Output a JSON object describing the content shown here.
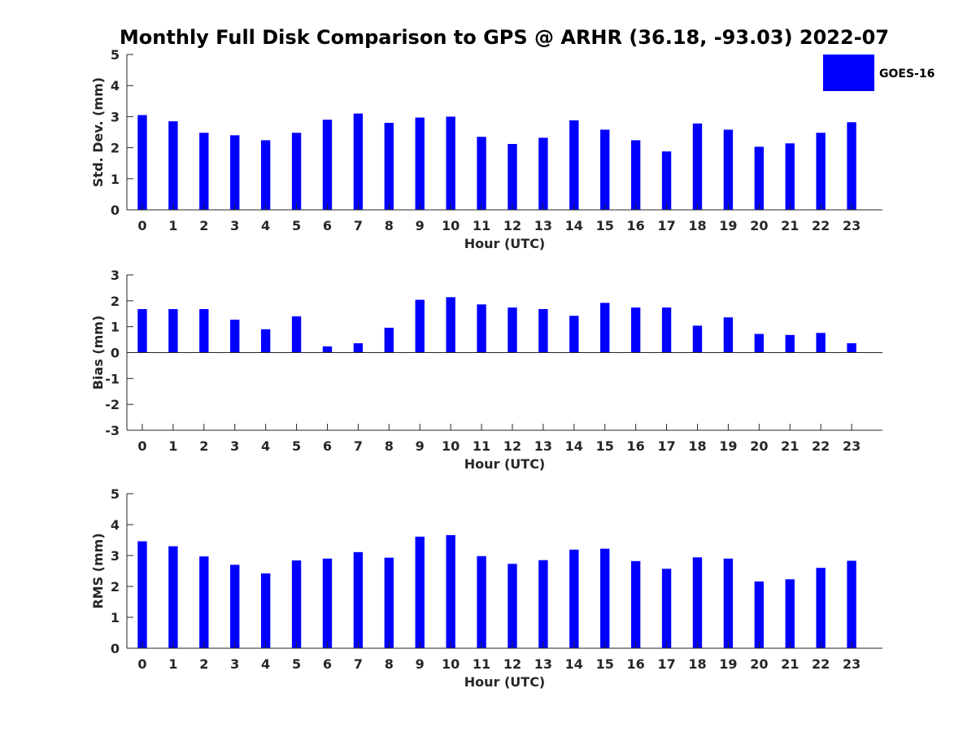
{
  "title": "Monthly Full Disk Comparison to GPS @ ARHR (36.18, -93.03) 2022-07",
  "colors": {
    "bar": "#0000ff",
    "axis": "#262626"
  },
  "legend": {
    "label": "GOES-16",
    "placement": "top-right"
  },
  "chart_data": [
    {
      "type": "bar",
      "xlabel": "Hour (UTC)",
      "ylabel": "Std. Dev. (mm)",
      "ylim": [
        0,
        5
      ],
      "yticks": [
        0,
        1,
        2,
        3,
        4,
        5
      ],
      "categories": [
        "0",
        "1",
        "2",
        "3",
        "4",
        "5",
        "6",
        "7",
        "8",
        "9",
        "10",
        "11",
        "12",
        "13",
        "14",
        "15",
        "16",
        "17",
        "18",
        "19",
        "20",
        "21",
        "22",
        "23"
      ],
      "series": [
        {
          "name": "GOES-16",
          "values": [
            3.05,
            2.85,
            2.48,
            2.4,
            2.24,
            2.48,
            2.9,
            3.1,
            2.8,
            2.97,
            3.0,
            2.35,
            2.12,
            2.32,
            2.88,
            2.58,
            2.24,
            1.88,
            2.78,
            2.58,
            2.03,
            2.14,
            2.48,
            2.82
          ]
        }
      ]
    },
    {
      "type": "bar",
      "xlabel": "Hour (UTC)",
      "ylabel": "Bias (mm)",
      "ylim": [
        -3,
        3
      ],
      "yticks": [
        -3,
        -2,
        -1,
        0,
        1,
        2,
        3
      ],
      "categories": [
        "0",
        "1",
        "2",
        "3",
        "4",
        "5",
        "6",
        "7",
        "8",
        "9",
        "10",
        "11",
        "12",
        "13",
        "14",
        "15",
        "16",
        "17",
        "18",
        "19",
        "20",
        "21",
        "22",
        "23"
      ],
      "series": [
        {
          "name": "GOES-16",
          "values": [
            1.68,
            1.68,
            1.68,
            1.27,
            0.9,
            1.4,
            0.24,
            0.36,
            0.96,
            2.04,
            2.14,
            1.86,
            1.74,
            1.68,
            1.42,
            1.92,
            1.74,
            1.74,
            1.04,
            1.36,
            0.72,
            0.68,
            0.76,
            0.36
          ]
        }
      ]
    },
    {
      "type": "bar",
      "xlabel": "Hour (UTC)",
      "ylabel": "RMS (mm)",
      "ylim": [
        0,
        5
      ],
      "yticks": [
        0,
        1,
        2,
        3,
        4,
        5
      ],
      "categories": [
        "0",
        "1",
        "2",
        "3",
        "4",
        "5",
        "6",
        "7",
        "8",
        "9",
        "10",
        "11",
        "12",
        "13",
        "14",
        "15",
        "16",
        "17",
        "18",
        "19",
        "20",
        "21",
        "22",
        "23"
      ],
      "series": [
        {
          "name": "GOES-16",
          "values": [
            3.46,
            3.3,
            2.97,
            2.7,
            2.42,
            2.84,
            2.9,
            3.11,
            2.93,
            3.61,
            3.66,
            2.98,
            2.73,
            2.85,
            3.19,
            3.22,
            2.82,
            2.57,
            2.94,
            2.9,
            2.16,
            2.23,
            2.6,
            2.83
          ]
        }
      ]
    }
  ]
}
